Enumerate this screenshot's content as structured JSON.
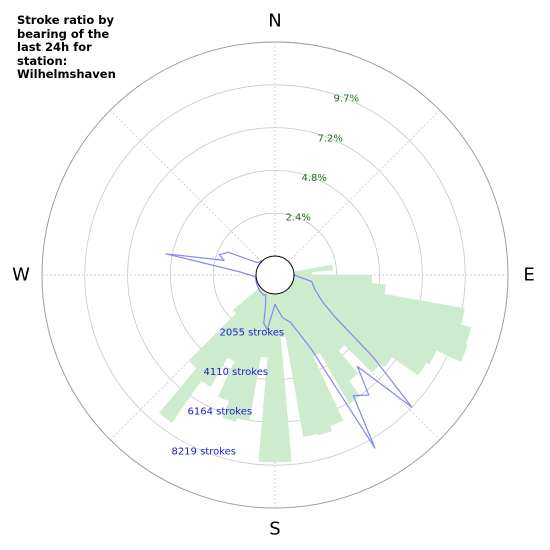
{
  "chart_data": {
    "type": "polar-bar-line",
    "title": "Stroke ratio by bearing of the last 24h for station: Wilhelmshaven",
    "directions": [
      "N",
      "E",
      "S",
      "W"
    ],
    "ratio_axis": {
      "unit": "%",
      "ticks": [
        "2.4%",
        "4.8%",
        "7.2%",
        "9.7%"
      ],
      "tick_values": [
        2.4,
        4.8,
        7.2,
        9.7
      ],
      "max": 12.1
    },
    "count_axis": {
      "unit": "strokes",
      "ticks": [
        "2055 strokes",
        "4110 strokes",
        "6164 strokes",
        "8219 strokes"
      ],
      "tick_values": [
        2055,
        4110,
        6164,
        8219
      ],
      "max": 10274
    },
    "grid": true,
    "bar_color": "#cdeccd",
    "line_color": "#8888ee",
    "bin_width_deg": 5,
    "ratio_bars": [
      {
        "bearing": 82.5,
        "value": 2.2
      },
      {
        "bearing": 87.5,
        "value": 1.0
      },
      {
        "bearing": 92.5,
        "value": 4.4
      },
      {
        "bearing": 97.5,
        "value": 5.2
      },
      {
        "bearing": 102.5,
        "value": 9.8
      },
      {
        "bearing": 107.5,
        "value": 10.4
      },
      {
        "bearing": 112.5,
        "value": 10.5
      },
      {
        "bearing": 117.5,
        "value": 9.0
      },
      {
        "bearing": 122.5,
        "value": 8.8
      },
      {
        "bearing": 127.5,
        "value": 7.0
      },
      {
        "bearing": 132.5,
        "value": 6.7
      },
      {
        "bearing": 137.5,
        "value": 4.5
      },
      {
        "bearing": 142.5,
        "value": 6.2
      },
      {
        "bearing": 147.5,
        "value": 7.3
      },
      {
        "bearing": 152.5,
        "value": 4.0
      },
      {
        "bearing": 157.5,
        "value": 8.0
      },
      {
        "bearing": 162.5,
        "value": 8.3
      },
      {
        "bearing": 167.5,
        "value": 8.2
      },
      {
        "bearing": 172.5,
        "value": 2.4
      },
      {
        "bearing": 177.5,
        "value": 9.5
      },
      {
        "bearing": 182.5,
        "value": 9.5
      },
      {
        "bearing": 187.5,
        "value": 3.6
      },
      {
        "bearing": 192.5,
        "value": 7.2
      },
      {
        "bearing": 197.5,
        "value": 7.5
      },
      {
        "bearing": 202.5,
        "value": 6.5
      },
      {
        "bearing": 207.5,
        "value": 4.3
      },
      {
        "bearing": 212.5,
        "value": 6.2
      },
      {
        "bearing": 217.5,
        "value": 9.1
      },
      {
        "bearing": 222.5,
        "value": 5.8
      },
      {
        "bearing": 227.5,
        "value": 2.0
      }
    ],
    "stroke_count_line": [
      {
        "bearing": 0,
        "value": 0
      },
      {
        "bearing": 50,
        "value": 0
      },
      {
        "bearing": 90,
        "value": 0
      },
      {
        "bearing": 100,
        "value": 880
      },
      {
        "bearing": 110,
        "value": 1120
      },
      {
        "bearing": 120,
        "value": 1760
      },
      {
        "bearing": 125,
        "value": 2620
      },
      {
        "bearing": 130,
        "value": 5300
      },
      {
        "bearing": 134,
        "value": 8220
      },
      {
        "bearing": 138,
        "value": 5000
      },
      {
        "bearing": 142,
        "value": 6400
      },
      {
        "bearing": 147,
        "value": 5990
      },
      {
        "bearing": 150,
        "value": 8680
      },
      {
        "bearing": 154,
        "value": 3000
      },
      {
        "bearing": 162,
        "value": 1460
      },
      {
        "bearing": 170,
        "value": 1180
      },
      {
        "bearing": 180,
        "value": 500
      },
      {
        "bearing": 188,
        "value": 1740
      },
      {
        "bearing": 193,
        "value": 1470
      },
      {
        "bearing": 197,
        "value": 640
      },
      {
        "bearing": 205,
        "value": 130
      },
      {
        "bearing": 210,
        "value": 200
      },
      {
        "bearing": 225,
        "value": 140
      },
      {
        "bearing": 245,
        "value": 70
      },
      {
        "bearing": 265,
        "value": 30
      },
      {
        "bearing": 275,
        "value": 760
      },
      {
        "bearing": 281,
        "value": 4420
      },
      {
        "bearing": 286,
        "value": 1630
      },
      {
        "bearing": 290,
        "value": 1940
      },
      {
        "bearing": 296,
        "value": 1570
      },
      {
        "bearing": 305,
        "value": 120
      },
      {
        "bearing": 315,
        "value": 30
      },
      {
        "bearing": 360,
        "value": 0
      }
    ]
  }
}
